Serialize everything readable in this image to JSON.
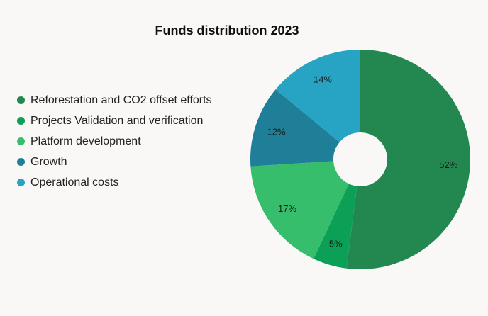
{
  "chart_data": {
    "type": "pie",
    "title": "Funds distribution 2023",
    "categories": [
      "Reforestation and CO2 offset efforts",
      "Projects Validation and verification",
      "Platform development",
      "Growth",
      "Operational costs"
    ],
    "values": [
      52,
      5,
      17,
      12,
      14
    ],
    "labels": [
      "52%",
      "5%",
      "17%",
      "12%",
      "14%"
    ],
    "colors": [
      "#23884f",
      "#0ba055",
      "#36be6d",
      "#1f7f99",
      "#27a3c4"
    ],
    "donut": true,
    "legend_position": "left"
  },
  "background": "#f9f8f7"
}
